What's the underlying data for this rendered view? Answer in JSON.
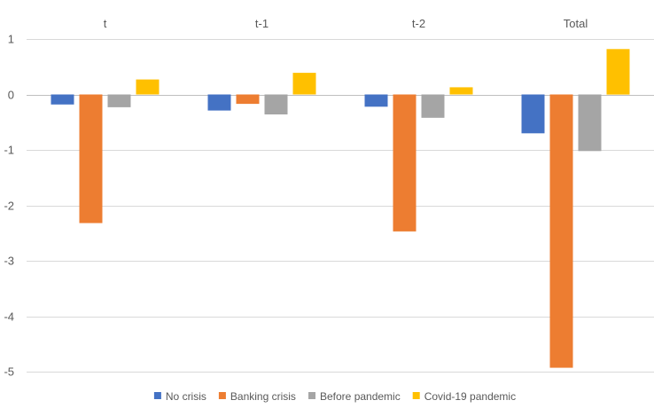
{
  "chart_data": {
    "type": "bar",
    "categories": [
      "t",
      "t-1",
      "t-2",
      "Total"
    ],
    "series": [
      {
        "name": "No crisis",
        "color": "#4472c4",
        "values": [
          -0.18,
          -0.29,
          -0.22,
          -0.7
        ]
      },
      {
        "name": "Banking crisis",
        "color": "#ed7d31",
        "values": [
          -2.32,
          -0.17,
          -2.47,
          -4.93
        ]
      },
      {
        "name": "Before pandemic",
        "color": "#a5a5a5",
        "values": [
          -0.23,
          -0.36,
          -0.42,
          -1.02
        ]
      },
      {
        "name": "Covid-19 pandemic",
        "color": "#ffc000",
        "values": [
          0.27,
          0.39,
          0.13,
          0.82
        ]
      }
    ],
    "ylim": [
      -5,
      1
    ],
    "yticks": [
      1,
      0,
      -1,
      -2,
      -3,
      -4,
      -5
    ],
    "grid": true,
    "category_labels_position": "top",
    "legend": "bottom"
  }
}
